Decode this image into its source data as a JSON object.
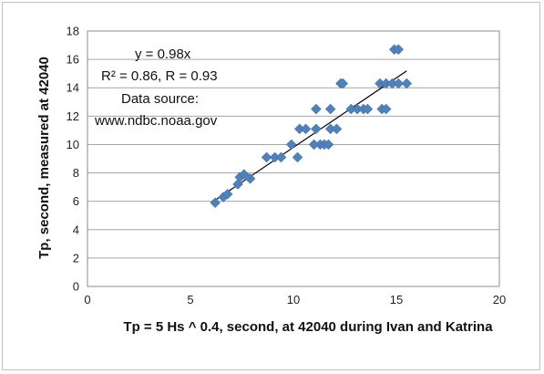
{
  "chart_data": {
    "type": "scatter",
    "xlabel": "Tp = 5 Hs ^ 0.4, second, at 42040 during Ivan and Katrina",
    "ylabel": "Tp, second, measured at 42040",
    "xlim": [
      0,
      20
    ],
    "ylim": [
      0,
      18
    ],
    "x_ticks": [
      "0",
      "5",
      "10",
      "15",
      "20"
    ],
    "y_ticks": [
      "0",
      "2",
      "4",
      "6",
      "8",
      "10",
      "12",
      "14",
      "16",
      "18"
    ],
    "x_tick_values": [
      0,
      5,
      10,
      15,
      20
    ],
    "y_tick_values": [
      0,
      2,
      4,
      6,
      8,
      10,
      12,
      14,
      16,
      18
    ],
    "grid": "horizontal",
    "marker_color": "#4f81bd",
    "trendline_color": "#000000",
    "annotations": [
      "y = 0.98x",
      "R² = 0.86, R = 0.93",
      "Data source:",
      "www.ndbc.noaa.gov"
    ],
    "trendline": {
      "slope": 0.98,
      "x_range": [
        6.2,
        15.5
      ]
    },
    "points": [
      {
        "x": 6.2,
        "y": 5.9
      },
      {
        "x": 6.6,
        "y": 6.3
      },
      {
        "x": 6.8,
        "y": 6.5
      },
      {
        "x": 7.3,
        "y": 7.2
      },
      {
        "x": 7.4,
        "y": 7.7
      },
      {
        "x": 7.6,
        "y": 7.9
      },
      {
        "x": 7.9,
        "y": 7.6
      },
      {
        "x": 8.7,
        "y": 9.1
      },
      {
        "x": 9.1,
        "y": 9.1
      },
      {
        "x": 9.4,
        "y": 9.1
      },
      {
        "x": 9.9,
        "y": 10.0
      },
      {
        "x": 10.2,
        "y": 9.1
      },
      {
        "x": 10.3,
        "y": 11.1
      },
      {
        "x": 10.6,
        "y": 11.1
      },
      {
        "x": 11.0,
        "y": 10.0
      },
      {
        "x": 11.1,
        "y": 11.1
      },
      {
        "x": 11.1,
        "y": 12.5
      },
      {
        "x": 11.3,
        "y": 10.0
      },
      {
        "x": 11.5,
        "y": 10.0
      },
      {
        "x": 11.7,
        "y": 10.0
      },
      {
        "x": 11.8,
        "y": 11.1
      },
      {
        "x": 11.8,
        "y": 12.5
      },
      {
        "x": 12.1,
        "y": 11.1
      },
      {
        "x": 12.3,
        "y": 14.3
      },
      {
        "x": 12.4,
        "y": 14.3
      },
      {
        "x": 12.8,
        "y": 12.5
      },
      {
        "x": 13.1,
        "y": 12.5
      },
      {
        "x": 13.4,
        "y": 12.5
      },
      {
        "x": 13.6,
        "y": 12.5
      },
      {
        "x": 14.2,
        "y": 14.3
      },
      {
        "x": 14.3,
        "y": 12.5
      },
      {
        "x": 14.5,
        "y": 12.5
      },
      {
        "x": 14.5,
        "y": 14.3
      },
      {
        "x": 14.8,
        "y": 14.3
      },
      {
        "x": 14.9,
        "y": 16.7
      },
      {
        "x": 15.1,
        "y": 16.7
      },
      {
        "x": 15.1,
        "y": 14.3
      },
      {
        "x": 15.5,
        "y": 14.3
      }
    ]
  }
}
